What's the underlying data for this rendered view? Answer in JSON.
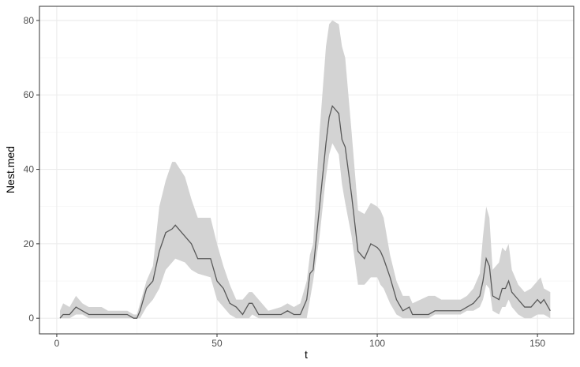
{
  "chart_data": {
    "type": "line",
    "x_label": "t",
    "y_label": "Nest.med",
    "x": [
      1,
      2,
      4,
      6,
      8,
      10,
      12,
      14,
      16,
      18,
      20,
      22,
      24,
      25,
      26,
      28,
      30,
      32,
      34,
      36,
      37,
      40,
      42,
      44,
      48,
      50,
      52,
      54,
      56,
      58,
      60,
      61,
      63,
      66,
      70,
      72,
      74,
      76,
      78,
      79,
      80,
      82,
      84,
      85,
      86,
      88,
      89,
      90,
      92,
      94,
      96,
      98,
      100,
      101,
      102,
      104,
      106,
      108,
      110,
      111,
      116,
      118,
      120,
      126,
      128,
      130,
      132,
      133,
      134,
      135,
      136,
      138,
      139,
      140,
      141,
      142,
      144,
      146,
      148,
      150,
      151,
      152,
      154
    ],
    "series": [
      {
        "color": "#595959",
        "values": [
          0,
          1,
          1,
          3,
          2,
          1,
          1,
          1,
          1,
          1,
          1,
          1,
          0,
          0,
          2,
          8,
          10,
          18,
          23,
          24,
          25,
          22,
          20,
          16,
          16,
          10,
          8,
          4,
          3,
          1,
          4,
          4,
          1,
          1,
          1,
          2,
          1,
          1,
          5,
          12,
          13,
          30,
          47,
          54,
          57,
          55,
          48,
          46,
          33,
          18,
          16,
          20,
          19,
          18,
          16,
          11,
          5,
          2,
          3,
          1,
          1,
          2,
          2,
          2,
          3,
          4,
          6,
          10,
          16,
          14,
          6,
          5,
          8,
          8,
          10,
          7,
          5,
          3,
          3,
          5,
          4,
          5,
          2
        ]
      }
    ],
    "band": {
      "color": "#d3d3d3",
      "lower": [
        0,
        0,
        0,
        1,
        1,
        0,
        0,
        0,
        0,
        0,
        0,
        0,
        0,
        0,
        0,
        3,
        5,
        8,
        13,
        15,
        16,
        15,
        13,
        12,
        11,
        5,
        3,
        1,
        0,
        0,
        0,
        1,
        0,
        0,
        0,
        0,
        0,
        0,
        0,
        5,
        10,
        22,
        38,
        44,
        47,
        44,
        36,
        31,
        22,
        9,
        9,
        11,
        11,
        9,
        8,
        4,
        1,
        0,
        0,
        0,
        0,
        1,
        1,
        1,
        2,
        2,
        3,
        5,
        9,
        8,
        2,
        1,
        3,
        3,
        5,
        3,
        1,
        0,
        0,
        1,
        1,
        1,
        0
      ],
      "upper": [
        2,
        4,
        3,
        6,
        4,
        3,
        3,
        3,
        2,
        2,
        2,
        2,
        1,
        1,
        4,
        10,
        14,
        30,
        37,
        42,
        42,
        38,
        32,
        27,
        27,
        20,
        14,
        9,
        5,
        5,
        7,
        7,
        5,
        2,
        3,
        4,
        3,
        4,
        10,
        17,
        20,
        50,
        73,
        79,
        80,
        79,
        73,
        70,
        50,
        29,
        28,
        31,
        30,
        29,
        27,
        17,
        10,
        6,
        6,
        4,
        6,
        6,
        5,
        5,
        6,
        8,
        12,
        22,
        30,
        27,
        13,
        15,
        19,
        18,
        20,
        13,
        9,
        7,
        8,
        10,
        11,
        8,
        7
      ]
    },
    "xlim": [
      -5.4,
      161.3
    ],
    "ylim": [
      -4.2,
      83.8
    ],
    "xticks": [
      0,
      50,
      100,
      150
    ],
    "yticks": [
      0,
      20,
      40,
      60,
      80
    ],
    "xminorticks": [
      25,
      75,
      125
    ],
    "yminorticks": [
      10,
      30,
      50,
      70
    ],
    "grid": true
  }
}
